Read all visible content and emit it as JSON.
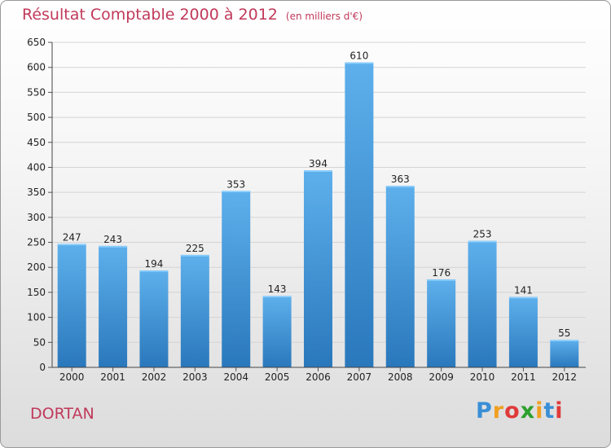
{
  "title": "Résultat Comptable 2000 à 2012",
  "unit_label": "(en milliers d'€)",
  "city": "DORTAN",
  "logo": {
    "text": "Proxiti",
    "letters": [
      "P",
      "r",
      "o",
      "x",
      "i",
      "t",
      "i"
    ],
    "colors": [
      "#3a8fd6",
      "#f0a020",
      "#e03a3a",
      "#2ca02c",
      "#f0a020",
      "#3a8fd6",
      "#e03a3a"
    ]
  },
  "colors": {
    "bar_top": "#5eb0ec",
    "bar_bottom": "#2a78bc",
    "title": "#c0395a",
    "grid": "#d4d4d4"
  },
  "chart_data": {
    "type": "bar",
    "title": "Résultat Comptable 2000 à 2012",
    "ylabel": "en milliers d'€",
    "xlabel": "",
    "categories": [
      "2000",
      "2001",
      "2002",
      "2003",
      "2004",
      "2005",
      "2006",
      "2007",
      "2008",
      "2009",
      "2010",
      "2011",
      "2012"
    ],
    "values": [
      247,
      243,
      194,
      225,
      353,
      143,
      394,
      610,
      363,
      176,
      253,
      141,
      55
    ],
    "ylim": [
      0,
      650
    ],
    "yticks": [
      0,
      50,
      100,
      150,
      200,
      250,
      300,
      350,
      400,
      450,
      500,
      550,
      600,
      650
    ],
    "grid": true,
    "data_labels": true
  }
}
